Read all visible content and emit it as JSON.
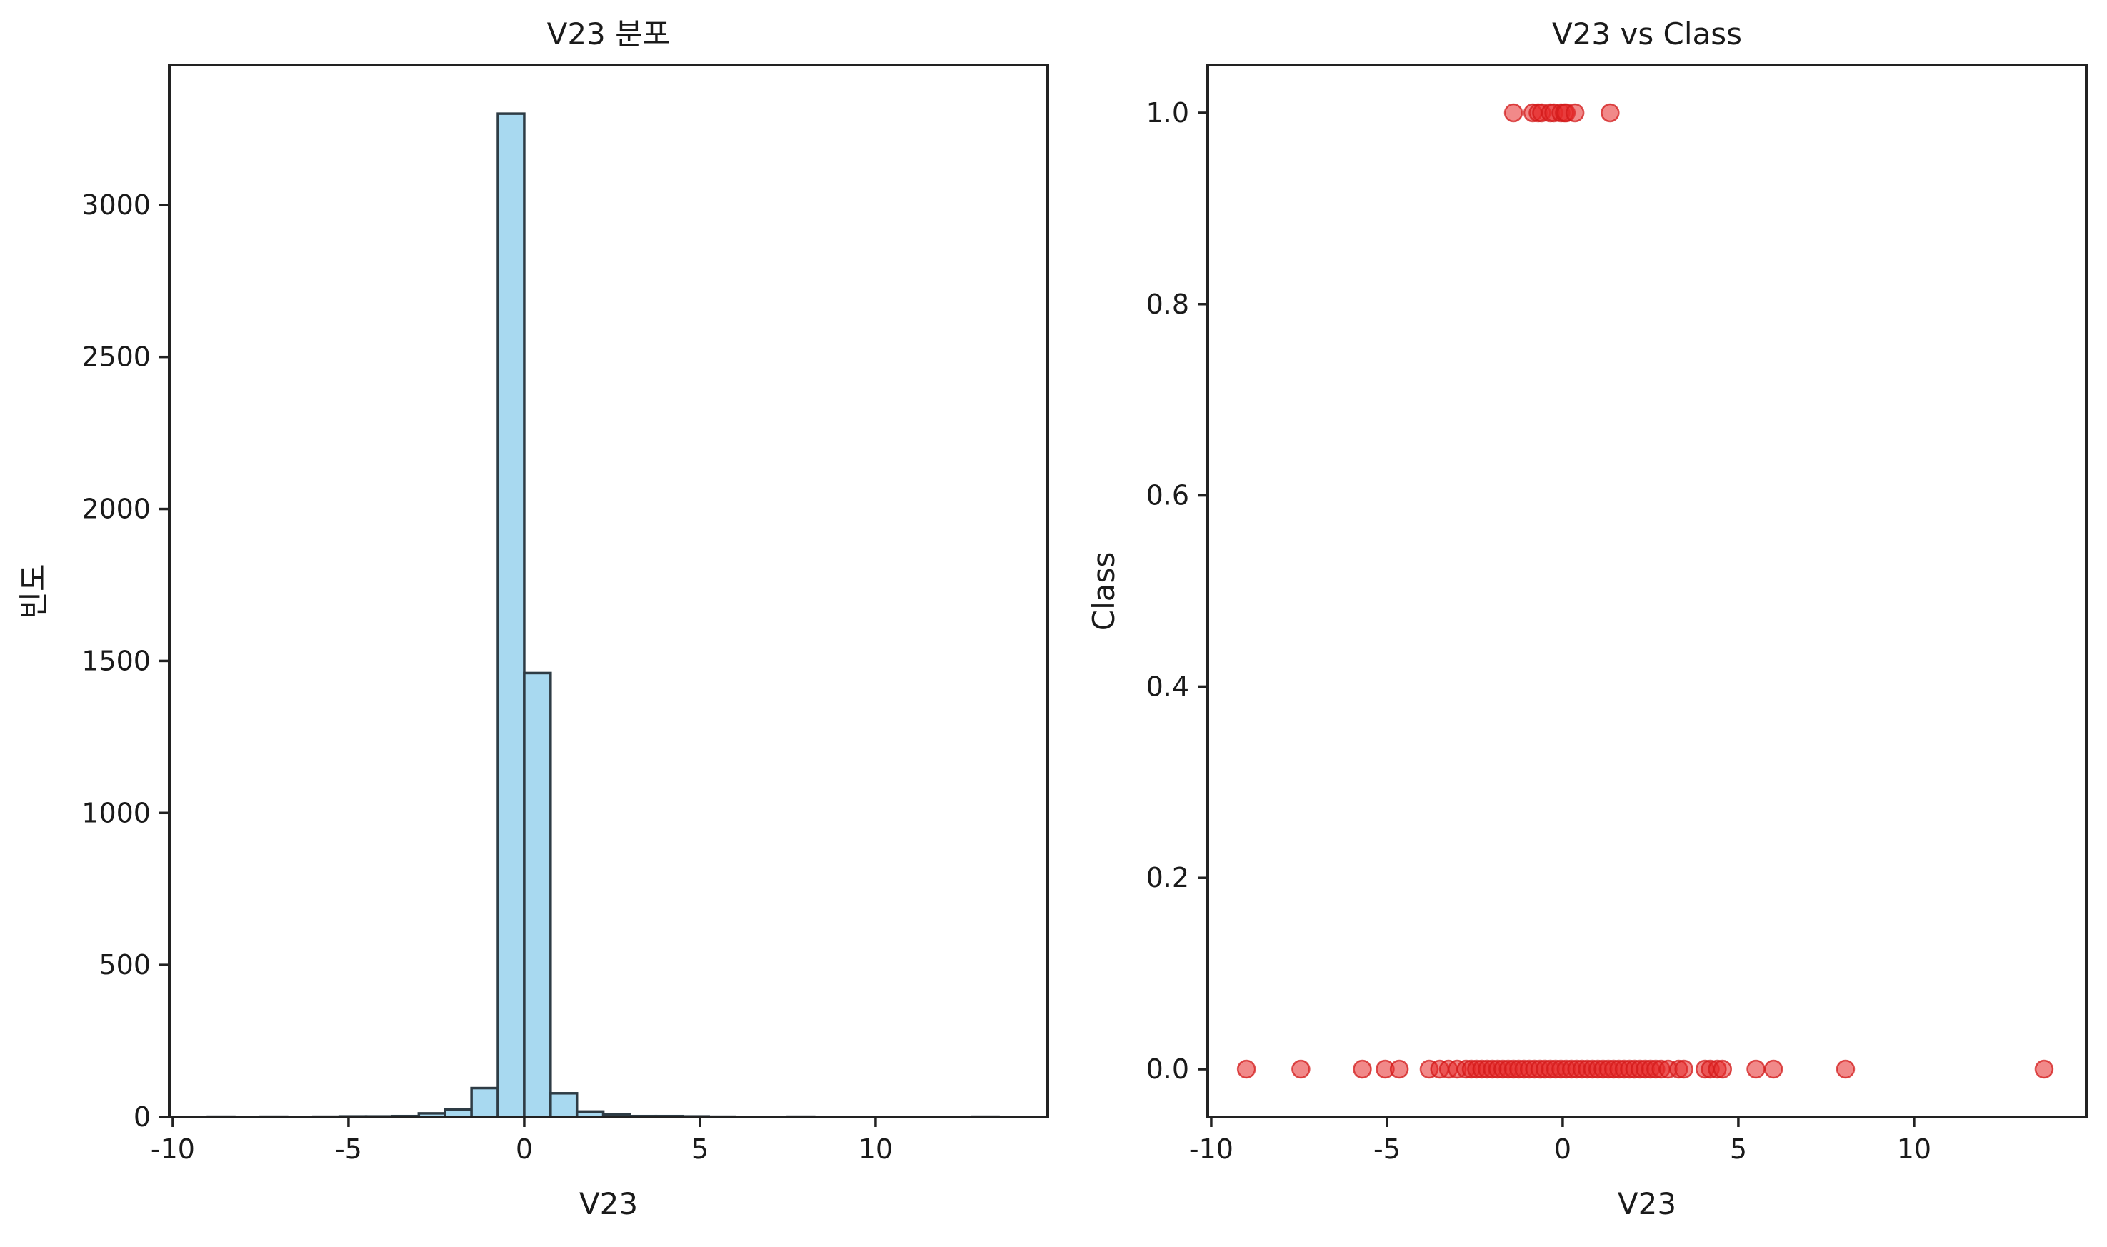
{
  "chart_data": [
    {
      "type": "bar",
      "subtype": "histogram",
      "title": "V23 분포",
      "xlabel": "V23",
      "ylabel": "빈도",
      "xlim": [
        -10.1,
        14.9
      ],
      "ylim": [
        0,
        3460
      ],
      "xticks": [
        -10,
        -5,
        0,
        5,
        10
      ],
      "xtick_labels": [
        "-10",
        "-5",
        "0",
        "5",
        "10"
      ],
      "yticks": [
        0,
        500,
        1000,
        1500,
        2000,
        2500,
        3000
      ],
      "ytick_labels": [
        "0",
        "500",
        "1000",
        "1500",
        "2000",
        "2500",
        "3000"
      ],
      "bins": [
        {
          "x0": -9.0,
          "x1": -8.25,
          "count": 1
        },
        {
          "x0": -7.5,
          "x1": -6.75,
          "count": 1
        },
        {
          "x0": -6.0,
          "x1": -5.25,
          "count": 1
        },
        {
          "x0": -5.25,
          "x1": -4.5,
          "count": 2
        },
        {
          "x0": -4.5,
          "x1": -3.75,
          "count": 2
        },
        {
          "x0": -3.75,
          "x1": -3.0,
          "count": 3
        },
        {
          "x0": -3.0,
          "x1": -2.25,
          "count": 12
        },
        {
          "x0": -2.25,
          "x1": -1.5,
          "count": 25
        },
        {
          "x0": -1.5,
          "x1": -0.75,
          "count": 95
        },
        {
          "x0": -0.75,
          "x1": 0.0,
          "count": 3300
        },
        {
          "x0": 0.0,
          "x1": 0.75,
          "count": 1460
        },
        {
          "x0": 0.75,
          "x1": 1.5,
          "count": 78
        },
        {
          "x0": 1.5,
          "x1": 2.25,
          "count": 18
        },
        {
          "x0": 2.25,
          "x1": 3.0,
          "count": 8
        },
        {
          "x0": 3.0,
          "x1": 3.75,
          "count": 3
        },
        {
          "x0": 3.75,
          "x1": 4.5,
          "count": 3
        },
        {
          "x0": 4.5,
          "x1": 5.25,
          "count": 2
        },
        {
          "x0": 5.25,
          "x1": 6.0,
          "count": 1
        },
        {
          "x0": 7.5,
          "x1": 8.25,
          "count": 1
        },
        {
          "x0": 12.75,
          "x1": 13.5,
          "count": 1
        }
      ],
      "color": "#a8d9f0",
      "edgecolor": "#2e3c45"
    },
    {
      "type": "scatter",
      "title": "V23 vs Class",
      "xlabel": "V23",
      "ylabel": "Class",
      "xlim": [
        -10.1,
        14.9
      ],
      "ylim": [
        -0.05,
        1.05
      ],
      "xticks": [
        -10,
        -5,
        0,
        5,
        10
      ],
      "xtick_labels": [
        "-10",
        "-5",
        "0",
        "5",
        "10"
      ],
      "yticks": [
        0.0,
        0.2,
        0.4,
        0.6,
        0.8,
        1.0
      ],
      "ytick_labels": [
        "0.0",
        "0.2",
        "0.4",
        "0.6",
        "0.8",
        "1.0"
      ],
      "color": "#e62828",
      "points": [
        {
          "x": -1.4,
          "y": 1
        },
        {
          "x": -0.85,
          "y": 1
        },
        {
          "x": -0.7,
          "y": 1
        },
        {
          "x": -0.6,
          "y": 1
        },
        {
          "x": -0.35,
          "y": 1
        },
        {
          "x": -0.25,
          "y": 1
        },
        {
          "x": -0.05,
          "y": 1
        },
        {
          "x": 0.05,
          "y": 1
        },
        {
          "x": 0.1,
          "y": 1
        },
        {
          "x": 0.35,
          "y": 1
        },
        {
          "x": 1.35,
          "y": 1
        },
        {
          "x": -9.0,
          "y": 0
        },
        {
          "x": -7.45,
          "y": 0
        },
        {
          "x": -5.7,
          "y": 0
        },
        {
          "x": -5.05,
          "y": 0
        },
        {
          "x": -4.65,
          "y": 0
        },
        {
          "x": -3.8,
          "y": 0
        },
        {
          "x": -3.5,
          "y": 0
        },
        {
          "x": -3.25,
          "y": 0
        },
        {
          "x": -3.0,
          "y": 0
        },
        {
          "x": -2.75,
          "y": 0
        },
        {
          "x": -2.6,
          "y": 0
        },
        {
          "x": -2.45,
          "y": 0
        },
        {
          "x": -2.3,
          "y": 0
        },
        {
          "x": -2.15,
          "y": 0
        },
        {
          "x": -2.0,
          "y": 0
        },
        {
          "x": -1.85,
          "y": 0
        },
        {
          "x": -1.7,
          "y": 0
        },
        {
          "x": -1.55,
          "y": 0
        },
        {
          "x": -1.4,
          "y": 0
        },
        {
          "x": -1.25,
          "y": 0
        },
        {
          "x": -1.1,
          "y": 0
        },
        {
          "x": -0.95,
          "y": 0
        },
        {
          "x": -0.8,
          "y": 0
        },
        {
          "x": -0.65,
          "y": 0
        },
        {
          "x": -0.5,
          "y": 0
        },
        {
          "x": -0.35,
          "y": 0
        },
        {
          "x": -0.2,
          "y": 0
        },
        {
          "x": -0.05,
          "y": 0
        },
        {
          "x": 0.1,
          "y": 0
        },
        {
          "x": 0.25,
          "y": 0
        },
        {
          "x": 0.4,
          "y": 0
        },
        {
          "x": 0.55,
          "y": 0
        },
        {
          "x": 0.7,
          "y": 0
        },
        {
          "x": 0.85,
          "y": 0
        },
        {
          "x": 1.0,
          "y": 0
        },
        {
          "x": 1.15,
          "y": 0
        },
        {
          "x": 1.3,
          "y": 0
        },
        {
          "x": 1.45,
          "y": 0
        },
        {
          "x": 1.6,
          "y": 0
        },
        {
          "x": 1.75,
          "y": 0
        },
        {
          "x": 1.9,
          "y": 0
        },
        {
          "x": 2.05,
          "y": 0
        },
        {
          "x": 2.2,
          "y": 0
        },
        {
          "x": 2.35,
          "y": 0
        },
        {
          "x": 2.5,
          "y": 0
        },
        {
          "x": 2.65,
          "y": 0
        },
        {
          "x": 2.8,
          "y": 0
        },
        {
          "x": 3.0,
          "y": 0
        },
        {
          "x": 3.3,
          "y": 0
        },
        {
          "x": 3.45,
          "y": 0
        },
        {
          "x": 4.05,
          "y": 0
        },
        {
          "x": 4.2,
          "y": 0
        },
        {
          "x": 4.4,
          "y": 0
        },
        {
          "x": 4.55,
          "y": 0
        },
        {
          "x": 5.5,
          "y": 0
        },
        {
          "x": 6.0,
          "y": 0
        },
        {
          "x": 8.05,
          "y": 0
        },
        {
          "x": 13.7,
          "y": 0
        }
      ]
    }
  ]
}
